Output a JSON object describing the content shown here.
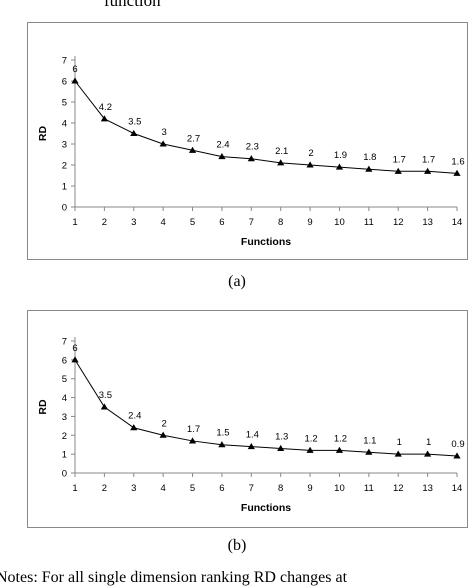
{
  "caption_fragment": "function",
  "notes_fragment": "Notes: For all single dimension ranking RD changes at",
  "chart_data": [
    {
      "type": "line",
      "panel_label": "(a)",
      "title": "",
      "xlabel": "Functions",
      "ylabel": "RD",
      "x": [
        1,
        2,
        3,
        4,
        5,
        6,
        7,
        8,
        9,
        10,
        11,
        12,
        13,
        14
      ],
      "xticks": [
        "1",
        "2",
        "3",
        "4",
        "5",
        "6",
        "7",
        "8",
        "9",
        "10",
        "11",
        "12",
        "13",
        "14"
      ],
      "yticks": [
        "0",
        "1",
        "2",
        "3",
        "4",
        "5",
        "6",
        "7"
      ],
      "ylim": [
        0,
        7
      ],
      "grid": false,
      "series": [
        {
          "values": [
            6,
            4.2,
            3.5,
            3,
            2.7,
            2.4,
            2.3,
            2.1,
            2,
            1.9,
            1.8,
            1.7,
            1.7,
            1.6
          ],
          "labels": [
            "6",
            "4.2",
            "3.5",
            "3",
            "2.7",
            "2.4",
            "2.3",
            "2.1",
            "2",
            "1.9",
            "1.8",
            "1.7",
            "1.7",
            "1.6"
          ],
          "marker": "triangle",
          "color": "#000000"
        }
      ]
    },
    {
      "type": "line",
      "panel_label": "(b)",
      "title": "",
      "xlabel": "Functions",
      "ylabel": "RD",
      "x": [
        1,
        2,
        3,
        4,
        5,
        6,
        7,
        8,
        9,
        10,
        11,
        12,
        13,
        14
      ],
      "xticks": [
        "1",
        "2",
        "3",
        "4",
        "5",
        "6",
        "7",
        "8",
        "9",
        "10",
        "11",
        "12",
        "13",
        "14"
      ],
      "yticks": [
        "0",
        "1",
        "2",
        "3",
        "4",
        "5",
        "6",
        "7"
      ],
      "ylim": [
        0,
        7
      ],
      "grid": false,
      "series": [
        {
          "values": [
            6,
            3.5,
            2.4,
            2,
            1.7,
            1.5,
            1.4,
            1.3,
            1.2,
            1.2,
            1.1,
            1,
            1,
            0.9
          ],
          "labels": [
            "6",
            "3.5",
            "2.4",
            "2",
            "1.7",
            "1.5",
            "1.4",
            "1.3",
            "1.2",
            "1.2",
            "1.1",
            "1",
            "1",
            "0.9"
          ],
          "marker": "triangle",
          "color": "#000000"
        }
      ]
    }
  ]
}
